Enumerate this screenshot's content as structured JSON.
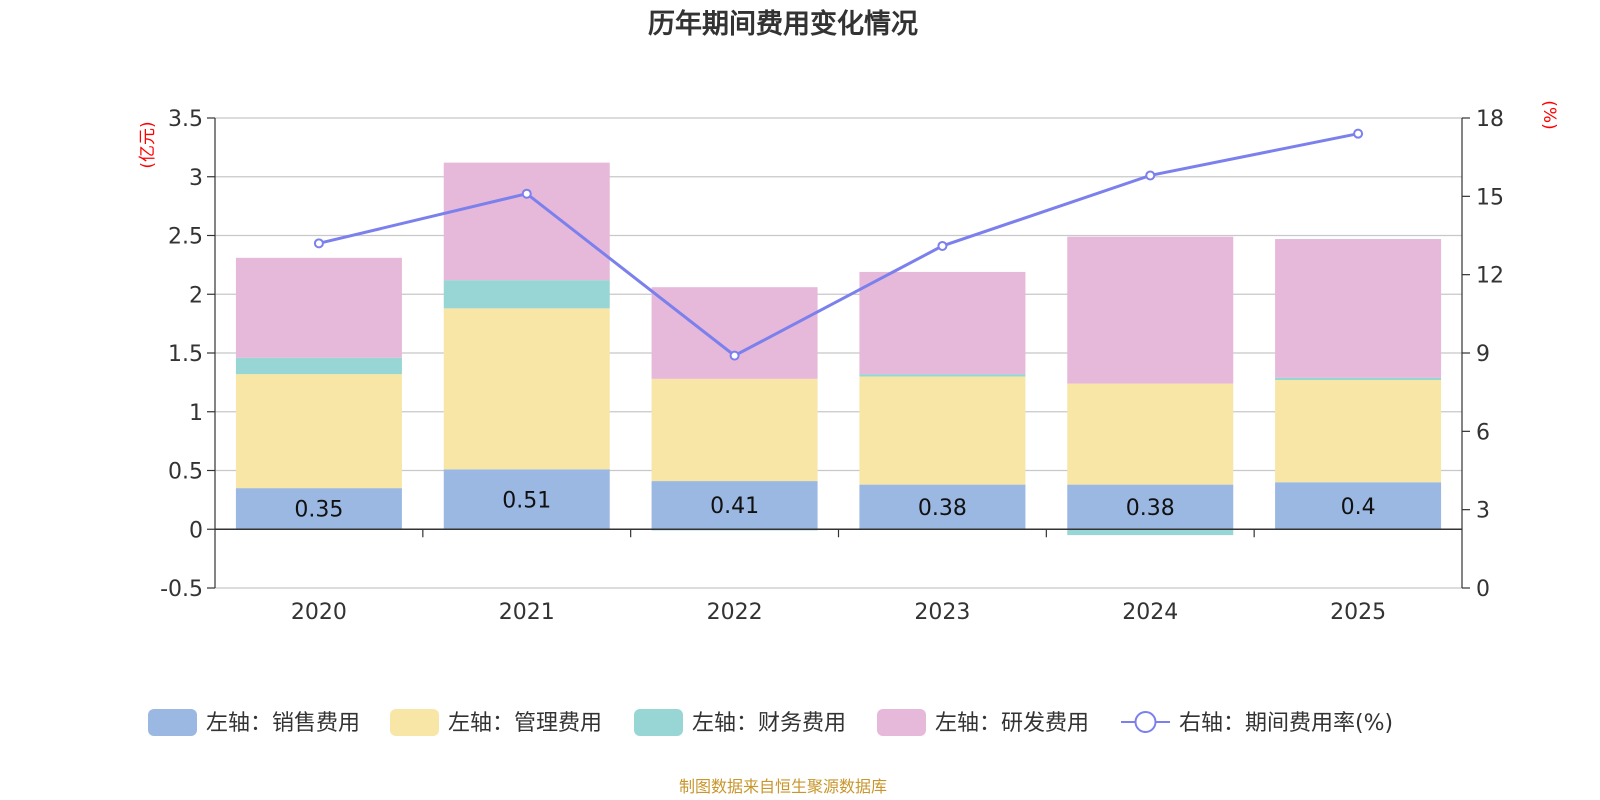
{
  "chart_data": {
    "type": "bar",
    "title": "历年期间费用变化情况",
    "categories": [
      "2020",
      "2021",
      "2022",
      "2023",
      "2024",
      "2025"
    ],
    "left_axis": {
      "unit": "(亿元)",
      "ylim": [
        -0.5,
        3.5
      ],
      "ticks": [
        "-0.5",
        "0",
        "0.5",
        "1",
        "1.5",
        "2",
        "2.5",
        "3",
        "3.5"
      ]
    },
    "right_axis": {
      "unit": "(%)",
      "ylim": [
        0,
        18
      ],
      "ticks": [
        "0",
        "3",
        "6",
        "9",
        "12",
        "15",
        "18"
      ]
    },
    "series": [
      {
        "name": "左轴：销售费用",
        "type": "bar",
        "axis": "left",
        "color": "#9bb8e3",
        "values": [
          0.35,
          0.51,
          0.41,
          0.38,
          0.38,
          0.4
        ],
        "labels": [
          "0.35",
          "0.51",
          "0.41",
          "0.38",
          "0.38",
          "0.4"
        ]
      },
      {
        "name": "左轴：管理费用",
        "type": "bar",
        "axis": "left",
        "color": "#f8e6a7",
        "values": [
          0.97,
          1.37,
          0.87,
          0.92,
          0.86,
          0.87
        ]
      },
      {
        "name": "左轴：财务费用",
        "type": "bar",
        "axis": "left",
        "color": "#98d5d5",
        "values": [
          0.14,
          0.24,
          -0.01,
          0.02,
          -0.05,
          0.02
        ]
      },
      {
        "name": "左轴：研发费用",
        "type": "bar",
        "axis": "left",
        "color": "#e6b8d9",
        "values": [
          0.85,
          1.0,
          0.78,
          0.87,
          1.25,
          1.18
        ]
      },
      {
        "name": "右轴：期间费用率(%)",
        "type": "line",
        "axis": "right",
        "color": "#7b80ed",
        "values": [
          13.2,
          15.1,
          8.9,
          13.1,
          15.8,
          17.4
        ]
      }
    ],
    "legend_position": "bottom",
    "grid": true
  },
  "footer": {
    "source": "制图数据来自恒生聚源数据库"
  }
}
